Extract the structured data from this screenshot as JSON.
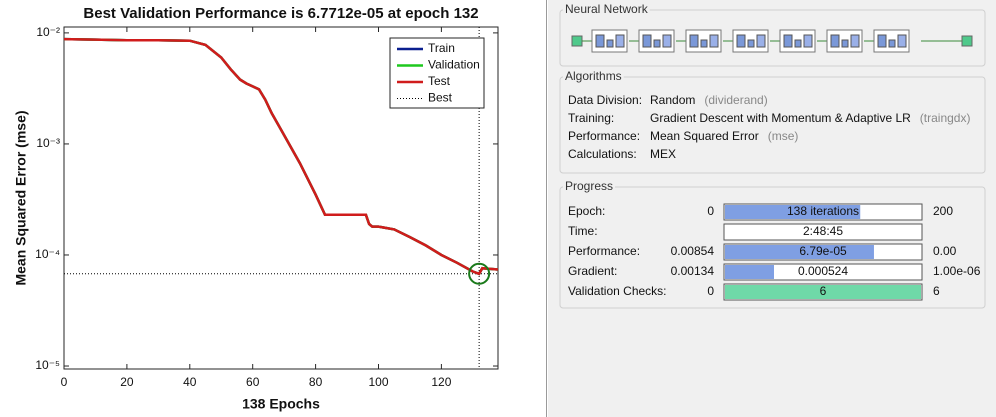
{
  "chart_data": {
    "type": "line",
    "title": "Best Validation Performance is 6.7712e-05 at epoch 132",
    "x_label": "138 Epochs",
    "y_label": "Mean Squared Error  (mse)",
    "log_y": true,
    "legend": "upper right",
    "xlim": [
      0,
      138
    ],
    "ylim": [
      9.4e-06,
      0.0113
    ],
    "xticks": [
      0,
      20,
      40,
      60,
      80,
      100,
      120
    ],
    "yticks": [
      {
        "value": 1e-05,
        "label": "10⁻⁵"
      },
      {
        "value": 0.0001,
        "label": "10⁻⁴"
      },
      {
        "value": 0.001,
        "label": "10⁻³"
      },
      {
        "value": 0.01,
        "label": "10⁻²"
      }
    ],
    "x": [
      0,
      10,
      20,
      30,
      40,
      45,
      50,
      53,
      56,
      58,
      60,
      62,
      64,
      66,
      70,
      75,
      80,
      83,
      90,
      96,
      97,
      98,
      100,
      105,
      110,
      115,
      120,
      125,
      130,
      132,
      133,
      135,
      138
    ],
    "series": [
      {
        "name": "Train",
        "color": "#0a1f8f",
        "values": [
          0.0088,
          0.0087,
          0.0086,
          0.0086,
          0.0085,
          0.0078,
          0.006,
          0.0047,
          0.0038,
          0.0035,
          0.0033,
          0.0031,
          0.0025,
          0.0019,
          0.0012,
          0.00067,
          0.00035,
          0.00023,
          0.00023,
          0.00023,
          0.00019,
          0.00018,
          0.00018,
          0.00017,
          0.000145,
          0.000122,
          0.0001,
          8.5e-05,
          7.1e-05,
          6.7712e-05,
          7.6e-05,
          7.5e-05,
          7.4e-05
        ]
      },
      {
        "name": "Validation",
        "color": "#1ec81e",
        "values": [
          0.0088,
          0.0087,
          0.0086,
          0.0086,
          0.0085,
          0.0078,
          0.006,
          0.0047,
          0.0038,
          0.0035,
          0.0033,
          0.0031,
          0.0025,
          0.0019,
          0.0012,
          0.00067,
          0.00035,
          0.00023,
          0.00023,
          0.00023,
          0.00019,
          0.00018,
          0.00018,
          0.00017,
          0.000145,
          0.000122,
          0.0001,
          8.5e-05,
          7.1e-05,
          6.7712e-05,
          7.6e-05,
          7.5e-05,
          7.4e-05
        ]
      },
      {
        "name": "Test",
        "color": "#d01c1c",
        "values": [
          0.0088,
          0.0087,
          0.0086,
          0.0086,
          0.0085,
          0.0078,
          0.006,
          0.0047,
          0.0038,
          0.0035,
          0.0033,
          0.0031,
          0.0025,
          0.0019,
          0.0012,
          0.00067,
          0.00035,
          0.00023,
          0.00023,
          0.00023,
          0.00019,
          0.00018,
          0.00018,
          0.00017,
          0.000145,
          0.000122,
          0.0001,
          8.5e-05,
          7.1e-05,
          6.7712e-05,
          7.6e-05,
          7.5e-05,
          7.4e-05
        ]
      }
    ],
    "best": {
      "name": "Best",
      "x": 132,
      "value": 6.7712e-05,
      "color": "#000000",
      "marker_color": "#1a7a1a"
    }
  },
  "panel": {
    "network": {
      "title": "Neural Network"
    },
    "algorithms": {
      "title": "Algorithms",
      "rows": [
        {
          "label": "Data Division:",
          "value": "Random",
          "note": "(dividerand)"
        },
        {
          "label": "Training:",
          "value": "Gradient Descent with Momentum & Adaptive LR",
          "note": "(traingdx)"
        },
        {
          "label": "Performance:",
          "value": "Mean Squared Error",
          "note": "(mse)"
        },
        {
          "label": "Calculations:",
          "value": "MEX"
        }
      ]
    },
    "progress": {
      "title": "Progress",
      "rows": [
        {
          "label": "Epoch:",
          "start": "0",
          "current": "138 iterations",
          "end": "200",
          "fill": 0.69,
          "color": "#7f9fe3"
        },
        {
          "label": "Time:",
          "current": "2:48:45"
        },
        {
          "label": "Performance:",
          "start": "0.00854",
          "current": "6.79e-05",
          "end": "0.00",
          "fill": 0.76,
          "color": "#7f9fe3"
        },
        {
          "label": "Gradient:",
          "start": "0.00134",
          "current": "0.000524",
          "end": "1.00e-06",
          "fill": 0.25,
          "color": "#7f9fe3"
        },
        {
          "label": "Validation Checks:",
          "start": "0",
          "current": "6",
          "end": "6",
          "fill": 1,
          "color": "#6fd9a8"
        }
      ]
    }
  }
}
